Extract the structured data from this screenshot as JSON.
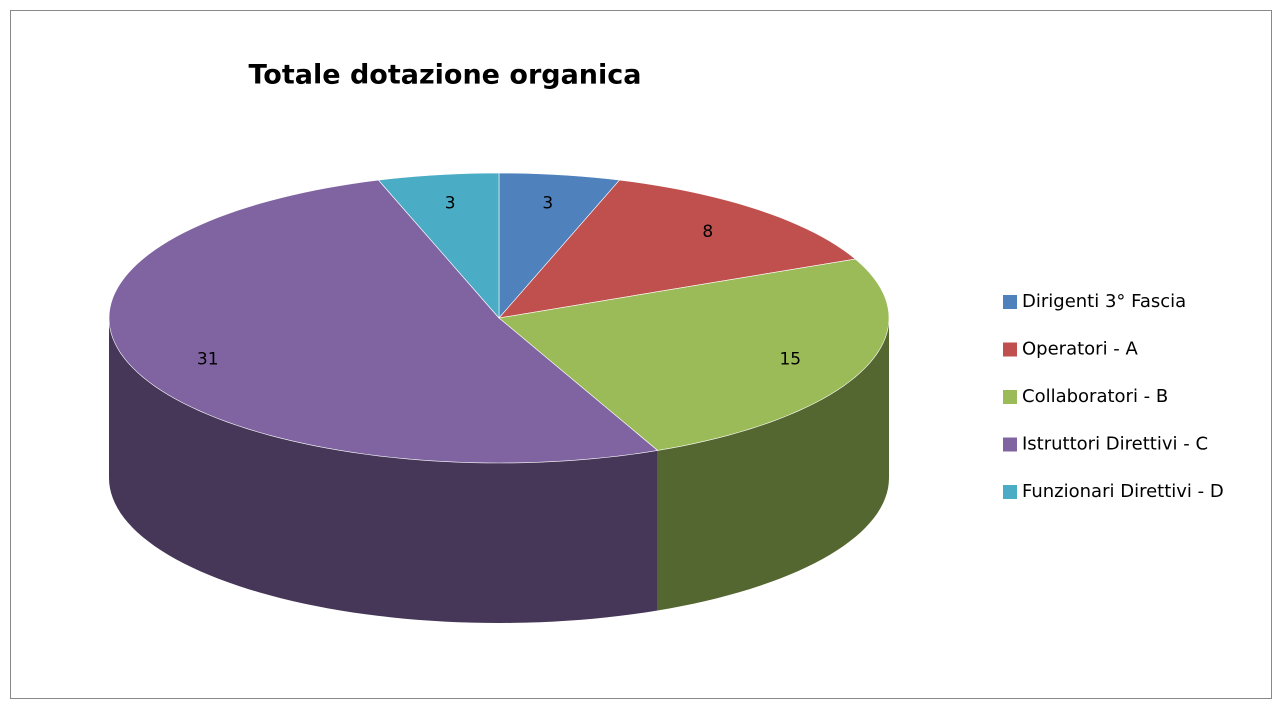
{
  "chart_data": {
    "type": "pie3d",
    "title": "Totale dotazione organica",
    "categories": [
      "Dirigenti 3° Fascia",
      "Operatori - A",
      "Collaboratori - B",
      "Istruttori Direttivi - C",
      "Funzionari Direttivi - D"
    ],
    "values": [
      3,
      8,
      15,
      31,
      3
    ],
    "colors": [
      "#4f81bd",
      "#c0504d",
      "#9bbb59",
      "#8064a2",
      "#4bacc6"
    ],
    "legend": "right"
  }
}
